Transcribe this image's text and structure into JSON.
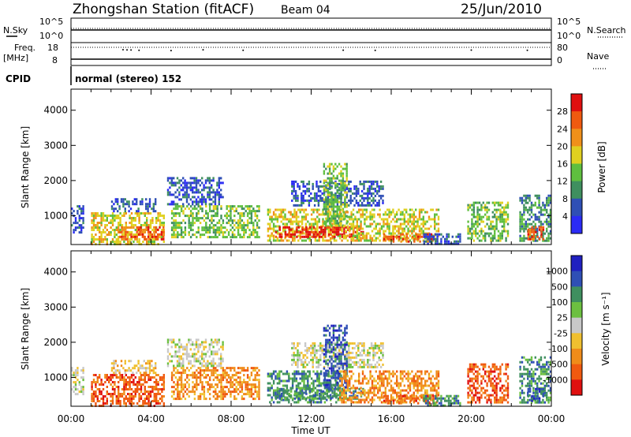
{
  "header": {
    "station": "Zhongshan Station (fitACF)",
    "beam": "Beam 04",
    "date": "25/Jun/2010"
  },
  "strip_panels": {
    "nsky_label": "N.Sky",
    "nsky_tick_top": "10^5",
    "nsky_tick_bottom": "10^0",
    "nsearch_label": "N.Search",
    "nsearch_tick_top": "10^5",
    "nsearch_tick_bottom": "10^0",
    "freq_label": "Freq.",
    "freq_unit": "[MHz]",
    "freq_tick_top": "18",
    "freq_tick_bottom": "8",
    "nave_label": "Nave",
    "nave_tick_top": "80",
    "nave_tick_bottom": "0",
    "cpid_label": "CPID",
    "cpid_value": "normal (stereo) 152"
  },
  "colors": {
    "power": [
      "#2b2bf5",
      "#2f4fb5",
      "#3f8f5f",
      "#5fbf3f",
      "#e0d020",
      "#f0901a",
      "#f05a10",
      "#e01010"
    ],
    "velocity": [
      "#e01010",
      "#f05a10",
      "#f08c1a",
      "#f0c030",
      "#c8c8c8",
      "#6cc040",
      "#3f8f5f",
      "#2f4fb5",
      "#2020c0"
    ]
  },
  "chart_data": [
    {
      "type": "heatmap",
      "panel": "power",
      "ylabel": "Slant Range [km]",
      "xlabel": "",
      "x_ticks": [
        "00:00",
        "04:00",
        "08:00",
        "12:00",
        "16:00",
        "20:00",
        "00:00"
      ],
      "y_ticks": [
        1000,
        2000,
        3000,
        4000
      ],
      "ylim": [
        180,
        4600
      ],
      "colorbar_label": "Power [dB]",
      "colorbar_ticks": [
        "4",
        "8",
        "12",
        "16",
        "20",
        "24",
        "28"
      ],
      "regions": [
        {
          "t0": 0.0,
          "t1": 0.6,
          "r0": 500,
          "r1": 1300,
          "level": 1
        },
        {
          "t0": 1.0,
          "t1": 4.6,
          "r0": 200,
          "r1": 1100,
          "level": 4
        },
        {
          "t0": 2.4,
          "t1": 4.6,
          "r0": 300,
          "r1": 700,
          "level": 6
        },
        {
          "t0": 2.0,
          "t1": 4.2,
          "r0": 1100,
          "r1": 1500,
          "level": 1
        },
        {
          "t0": 4.8,
          "t1": 7.6,
          "r0": 1300,
          "r1": 2100,
          "level": 1
        },
        {
          "t0": 5.0,
          "t1": 9.4,
          "r0": 400,
          "r1": 1300,
          "level": 3
        },
        {
          "t0": 9.8,
          "t1": 13.4,
          "r0": 300,
          "r1": 1200,
          "level": 4
        },
        {
          "t0": 10.2,
          "t1": 14.6,
          "r0": 400,
          "r1": 700,
          "level": 7
        },
        {
          "t0": 11.0,
          "t1": 15.6,
          "r0": 1300,
          "r1": 2000,
          "level": 1
        },
        {
          "t0": 12.6,
          "t1": 13.8,
          "r0": 700,
          "r1": 2500,
          "level": 3
        },
        {
          "t0": 13.4,
          "t1": 18.4,
          "r0": 300,
          "r1": 1200,
          "level": 4
        },
        {
          "t0": 15.6,
          "t1": 18.2,
          "r0": 250,
          "r1": 500,
          "level": 6
        },
        {
          "t0": 17.6,
          "t1": 19.4,
          "r0": 200,
          "r1": 500,
          "level": 1
        },
        {
          "t0": 19.8,
          "t1": 21.8,
          "r0": 300,
          "r1": 1400,
          "level": 3
        },
        {
          "t0": 22.4,
          "t1": 24.0,
          "r0": 300,
          "r1": 1600,
          "level": 2
        },
        {
          "t0": 22.8,
          "t1": 23.6,
          "r0": 300,
          "r1": 700,
          "level": 6
        }
      ]
    },
    {
      "type": "heatmap",
      "panel": "velocity",
      "ylabel": "Slant Range [km]",
      "xlabel": "Time UT",
      "x_ticks": [
        "00:00",
        "04:00",
        "08:00",
        "12:00",
        "16:00",
        "20:00",
        "00:00"
      ],
      "y_ticks": [
        1000,
        2000,
        3000,
        4000
      ],
      "ylim": [
        180,
        4600
      ],
      "colorbar_label": "Velocity [m s⁻¹]",
      "colorbar_ticks": [
        "1000",
        "500",
        "100",
        "25",
        "-25",
        "-100",
        "-500",
        "-1000"
      ],
      "regions": [
        {
          "t0": 0.0,
          "t1": 0.6,
          "r0": 500,
          "r1": 1300,
          "level": 4
        },
        {
          "t0": 1.0,
          "t1": 4.6,
          "r0": 200,
          "r1": 1100,
          "level": 1
        },
        {
          "t0": 2.0,
          "t1": 4.2,
          "r0": 1100,
          "r1": 1500,
          "level": 3
        },
        {
          "t0": 4.8,
          "t1": 7.6,
          "r0": 1300,
          "r1": 2100,
          "level": 4
        },
        {
          "t0": 5.0,
          "t1": 9.4,
          "r0": 400,
          "r1": 1300,
          "level": 2
        },
        {
          "t0": 9.8,
          "t1": 13.4,
          "r0": 300,
          "r1": 1200,
          "level": 6
        },
        {
          "t0": 10.2,
          "t1": 14.6,
          "r0": 400,
          "r1": 700,
          "level": 6
        },
        {
          "t0": 11.0,
          "t1": 15.6,
          "r0": 1300,
          "r1": 2000,
          "level": 4
        },
        {
          "t0": 12.6,
          "t1": 13.8,
          "r0": 700,
          "r1": 2500,
          "level": 7
        },
        {
          "t0": 13.4,
          "t1": 18.4,
          "r0": 300,
          "r1": 1200,
          "level": 2
        },
        {
          "t0": 15.6,
          "t1": 18.2,
          "r0": 250,
          "r1": 500,
          "level": 1
        },
        {
          "t0": 17.6,
          "t1": 19.4,
          "r0": 200,
          "r1": 500,
          "level": 6
        },
        {
          "t0": 19.8,
          "t1": 21.8,
          "r0": 300,
          "r1": 1400,
          "level": 1
        },
        {
          "t0": 22.4,
          "t1": 24.0,
          "r0": 300,
          "r1": 1600,
          "level": 6
        },
        {
          "t0": 22.8,
          "t1": 23.6,
          "r0": 300,
          "r1": 700,
          "level": 7
        }
      ]
    }
  ]
}
